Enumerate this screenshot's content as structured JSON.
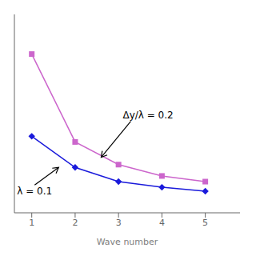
{
  "chart_data": {
    "type": "line",
    "xlabel": "Wave number",
    "x": [
      1,
      2,
      3,
      4,
      5
    ],
    "series": [
      {
        "color": "#cc66cc",
        "marker": "square",
        "values": [
          3.1,
          1.55,
          1.15,
          0.95,
          0.85
        ]
      },
      {
        "color": "#1a1adb",
        "marker": "diamond",
        "values": [
          1.65,
          1.1,
          0.85,
          0.75,
          0.68
        ]
      }
    ],
    "xlim": [
      0.6,
      5.8
    ],
    "ylim": [
      0.3,
      3.8
    ],
    "xticks": [
      1,
      2,
      3,
      4,
      5
    ],
    "tick_labels": "x",
    "grid": false,
    "annotations": [
      {
        "text": "λ = 0.1",
        "x": 1.62,
        "y": 1.1
      },
      {
        "text": "Δy/λ = 0.2",
        "x": 2.6,
        "y": 1.28
      }
    ]
  }
}
